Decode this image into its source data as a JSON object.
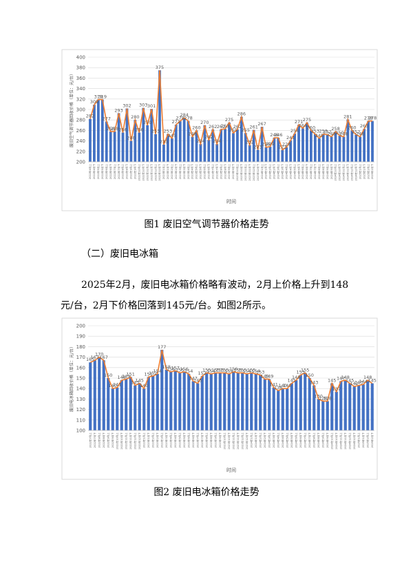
{
  "document": {
    "caption1": "图1  废旧空气调节器价格走势",
    "heading": "（二）废旧电冰箱",
    "para_line1": "2025年2月，废旧电冰箱价格略有波动，2月上价格上升到148",
    "para_line2": "元/台，2月下价格回落到145元/台。如图2所示。",
    "caption2": "图2  废旧电冰箱价格走势"
  },
  "chart_data": [
    {
      "type": "bar_line",
      "ylabel": "废旧空气调节器回收价格（单位：元/台）",
      "xlabel": "时间",
      "bar_color": "#4472c4",
      "line_color": "#ed7d31",
      "grid": true,
      "ylim": [
        200,
        400
      ],
      "yticks": [
        200,
        220,
        240,
        260,
        280,
        300,
        320,
        340,
        360,
        380,
        400
      ],
      "categories": [
        "2022年4月上",
        "2022年4月下",
        "2022年5月上",
        "2022年5月下",
        "2022年6月上",
        "2022年6月下",
        "2022年7月上",
        "2022年7月下",
        "2022年8月上",
        "2022年8月下",
        "2022年9月上",
        "2022年9月下",
        "2022年10月上",
        "2022年10月下",
        "2022年11月上",
        "2022年11月下",
        "2022年12月上",
        "2022年12月下",
        "2023年1月上",
        "2023年1月下",
        "2023年2月上",
        "2023年2月下",
        "2023年3月上",
        "2023年3月下",
        "2023年4月上",
        "2023年4月下",
        "2023年5月上",
        "2023年5月下",
        "2023年6月上",
        "2023年6月下",
        "2023年7月上",
        "2023年7月下",
        "2023年8月上",
        "2023年8月下",
        "2023年9月上",
        "2023年9月下",
        "2023年10月上",
        "2023年10月下",
        "2023年11月上",
        "2023年11月下",
        "2023年12月上",
        "2023年12月下",
        "2024年1月上",
        "2024年1月下",
        "2024年2月上",
        "2024年2月下",
        "2024年3月上",
        "2024年3月下",
        "2024年4月上",
        "2024年4月下",
        "2024年5月上",
        "2024年5月下",
        "2024年6月上",
        "2024年6月下",
        "2024年7月上",
        "2024年7月下",
        "2024年8月上",
        "2024年8月下",
        "2024年9月上",
        "2024年9月下",
        "2024年10月上",
        "2024年10月下",
        "2024年11月上",
        "2024年11月下",
        "2024年12月上",
        "2024年12月下",
        "2025年1月上",
        "2025年1月下",
        "2025年2月上",
        "2025年2月下"
      ],
      "values": [
        282,
        309,
        319,
        319,
        277,
        258,
        258,
        293,
        256,
        302,
        240,
        280,
        256,
        303,
        270,
        301,
        253,
        375,
        233,
        253,
        245,
        271,
        278,
        284,
        278,
        248,
        260,
        234,
        270,
        242,
        262,
        234,
        262,
        263,
        275,
        255,
        262,
        286,
        255,
        232,
        261,
        223,
        267,
        228,
        229,
        246,
        246,
        223,
        228,
        241,
        254,
        271,
        264,
        275,
        260,
        253,
        245,
        253,
        252,
        248,
        258,
        250,
        248,
        281,
        260,
        252,
        248,
        263,
        278,
        278
      ]
    },
    {
      "type": "bar_line",
      "ylabel": "废旧电冰箱回收价格（单位：元/台）",
      "xlabel": "时间",
      "bar_color": "#4472c4",
      "line_color": "#ed7d31",
      "grid": true,
      "ylim": [
        100,
        200
      ],
      "yticks": [
        100,
        110,
        120,
        130,
        140,
        150,
        160,
        170,
        180,
        190,
        200
      ],
      "categories": [
        "2022年7月上",
        "2022年7月下",
        "2022年8月上",
        "2022年8月下",
        "2022年9月上",
        "2022年9月下",
        "2022年10月上",
        "2022年10月下",
        "2022年11月上",
        "2022年11月下",
        "2022年12月上",
        "2022年12月下",
        "2023年1月上",
        "2023年1月下",
        "2023年2月上",
        "2023年2月下",
        "2023年3月上",
        "2023年3月下",
        "2023年4月上",
        "2023年4月下",
        "2023年5月上",
        "2023年5月下",
        "2023年6月上",
        "2023年6月下",
        "2023年7月上",
        "2023年7月下",
        "2023年8月上",
        "2023年8月下",
        "2023年9月上",
        "2023年9月下",
        "2023年10月上",
        "2023年10月下",
        "2023年11月上",
        "2023年11月下",
        "2023年12月上",
        "2023年12月下",
        "2024年1月上",
        "2024年1月下",
        "2024年2月上",
        "2024年2月下",
        "2024年3月上",
        "2024年3月下",
        "2024年4月上",
        "2024年4月下",
        "2024年5月上",
        "2024年5月下",
        "2024年6月上",
        "2024年6月下",
        "2024年7月上",
        "2024年7月下",
        "2024年8月上",
        "2024年8月下",
        "2024年9月上",
        "2024年9月下",
        "2024年10月上",
        "2024年10月下",
        "2024年11月上",
        "2024年11月下",
        "2024年12月上",
        "2024年12月下",
        "2025年1月上",
        "2025年1月下",
        "2025年2月上",
        "2025年2月下"
      ],
      "values": [
        165,
        167,
        170,
        167,
        150,
        140,
        141,
        148,
        149,
        151,
        143,
        145,
        140,
        151,
        152,
        154,
        177,
        158,
        156,
        157,
        155,
        156,
        154,
        147,
        145,
        152,
        155,
        154,
        155,
        155,
        155,
        154,
        156,
        155,
        155,
        154,
        155,
        154,
        153,
        149,
        149,
        141,
        138,
        140,
        140,
        145,
        148,
        153,
        155,
        150,
        143,
        130,
        128,
        128,
        145,
        137,
        147,
        148,
        145,
        142,
        143,
        144,
        148,
        145
      ]
    }
  ]
}
